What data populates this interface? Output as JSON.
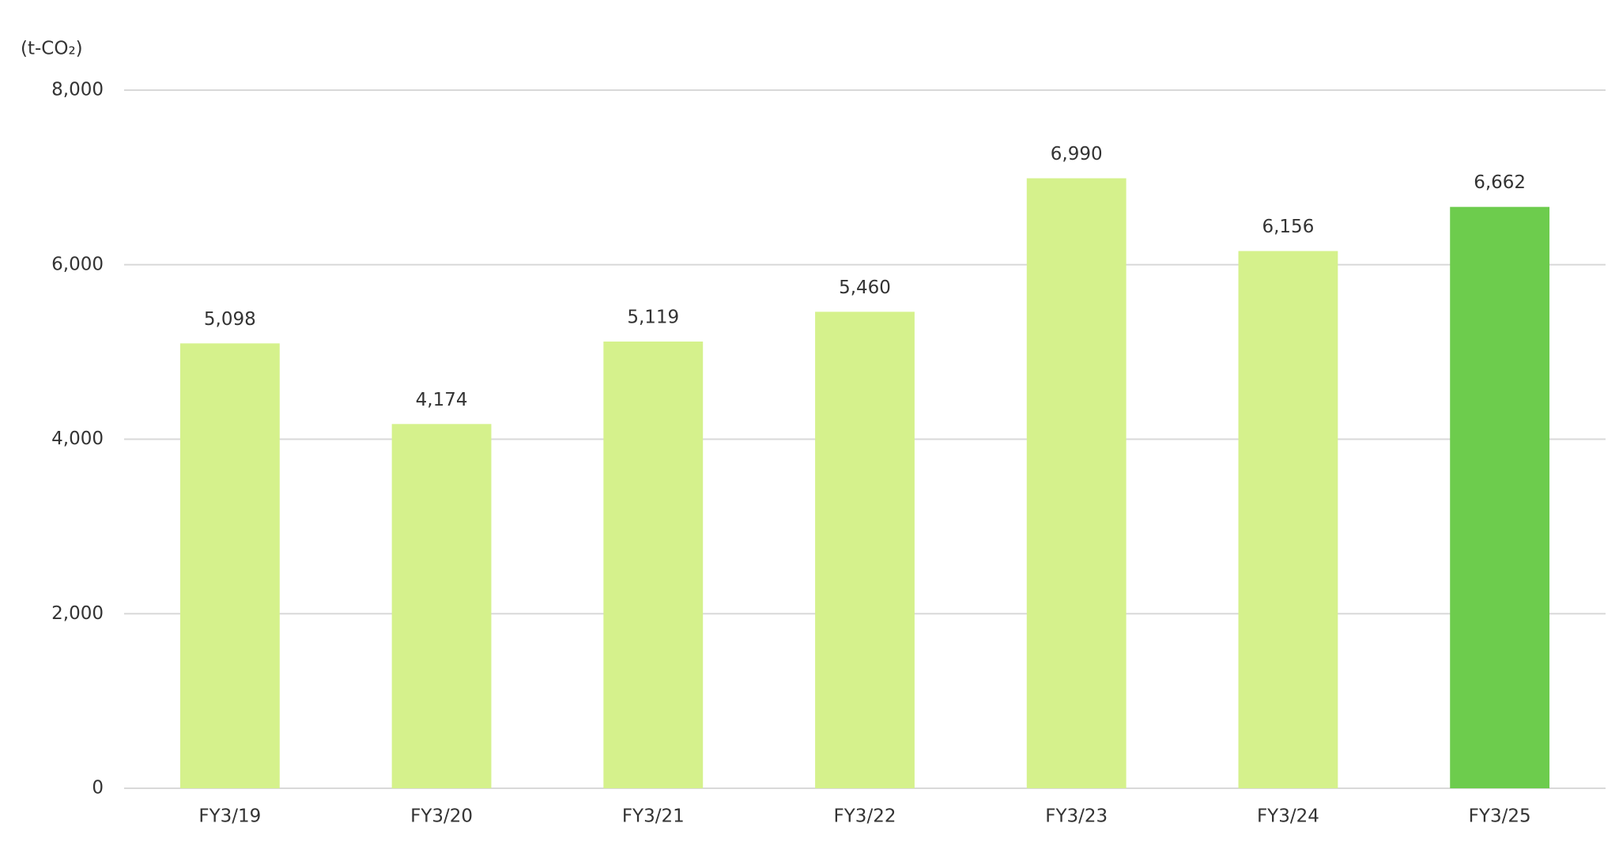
{
  "chart_data": {
    "type": "bar",
    "y_axis_label": "(t-CO₂)",
    "categories": [
      "FY3/19",
      "FY3/20",
      "FY3/21",
      "FY3/22",
      "FY3/23",
      "FY3/24",
      "FY3/25"
    ],
    "values": [
      5098,
      4174,
      5119,
      5460,
      6990,
      6156,
      6662
    ],
    "value_labels": [
      "5,098",
      "4,174",
      "5,119",
      "5,460",
      "6,990",
      "6,156",
      "6,662"
    ],
    "colors": [
      "#d5f18c",
      "#d5f18c",
      "#d5f18c",
      "#d5f18c",
      "#d5f18c",
      "#d5f18c",
      "#6dcc4d"
    ],
    "ylim": [
      0,
      8000
    ],
    "yticks": [
      0,
      {
        "value": 2000,
        "label": "2,000"
      },
      {
        "value": 4000,
        "label": "4,000"
      },
      {
        "value": 6000,
        "label": "6,000"
      },
      {
        "value": 8000,
        "label": "8,000"
      }
    ],
    "grid": true
  }
}
